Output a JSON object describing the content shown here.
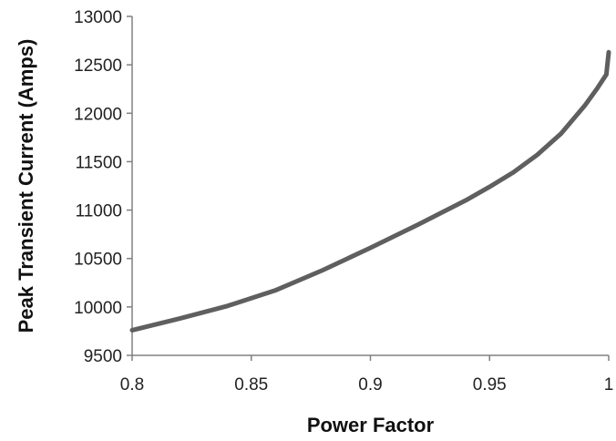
{
  "chart_data": {
    "type": "line",
    "title": "",
    "xlabel": "Power Factor",
    "ylabel": "Peak Transient Current (Amps)",
    "xlim": [
      0.8,
      1.0
    ],
    "ylim": [
      9500,
      13000
    ],
    "x_ticks": [
      "0.8",
      "0.85",
      "0.9",
      "0.95",
      "1"
    ],
    "y_ticks": [
      "9500",
      "10000",
      "10500",
      "11000",
      "11500",
      "12000",
      "12500",
      "13000"
    ],
    "grid": false,
    "legend": "none",
    "series_color": "#5f5f5f",
    "series": [
      {
        "x": [
          0.8,
          0.82,
          0.84,
          0.86,
          0.88,
          0.9,
          0.92,
          0.94,
          0.95,
          0.96,
          0.97,
          0.98,
          0.99,
          0.995,
          0.999,
          1.0
        ],
        "y": [
          9760,
          9880,
          10010,
          10170,
          10380,
          10610,
          10850,
          11100,
          11240,
          11390,
          11570,
          11790,
          12080,
          12250,
          12400,
          12630
        ]
      }
    ]
  }
}
